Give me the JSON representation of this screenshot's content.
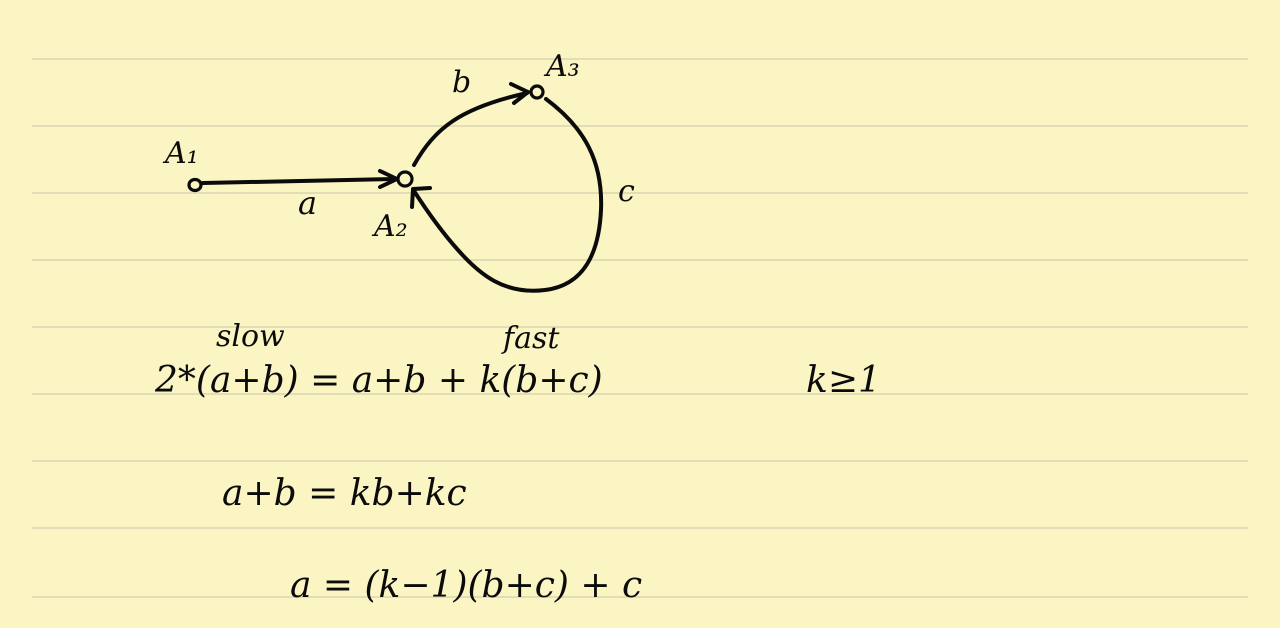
{
  "nodes": {
    "a1": "A₁",
    "a2": "A₂",
    "a3": "A₃"
  },
  "edges": {
    "a": "a",
    "b": "b",
    "c": "c"
  },
  "labels": {
    "slow": "slow",
    "fast": "fast"
  },
  "equations": {
    "line1": "2*(a+b) = a+b + k(b+c)",
    "condition": "k≥1",
    "line2": "a+b = kb+kc",
    "line3": "a = (k−1)(b+c) + c"
  }
}
